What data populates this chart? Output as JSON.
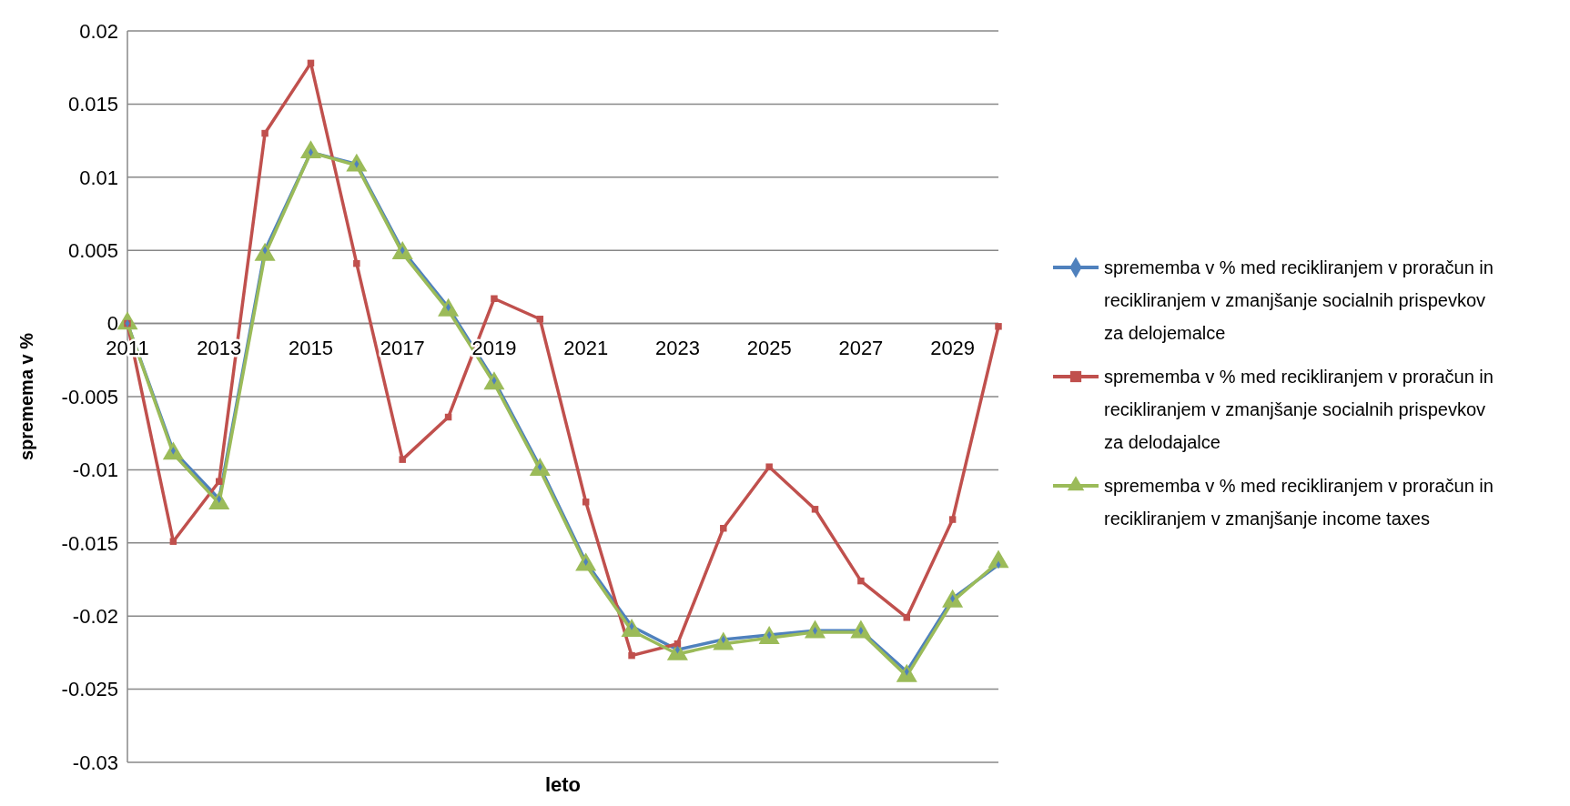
{
  "chart_data": {
    "type": "line",
    "xlabel": "leto",
    "ylabel": "spremema v %",
    "categories": [
      "2011",
      null,
      "2013",
      null,
      "2015",
      null,
      "2017",
      null,
      "2019",
      null,
      "2021",
      null,
      "2023",
      null,
      "2025",
      null,
      "2027",
      null,
      "2029",
      null
    ],
    "ylim": [
      -0.03,
      0.02
    ],
    "yticks": [
      -0.03,
      -0.025,
      -0.02,
      -0.015,
      -0.01,
      -0.005,
      0,
      0.005,
      0.01,
      0.015,
      0.02
    ],
    "grid": "y",
    "legend": "right",
    "series": [
      {
        "name": "sprememba v % med recikliranjem v proračun in recikliranjem v zmanjšanje socialnih prispevkov za delojemalce",
        "color": "#4f81bd",
        "marker": "diamond",
        "values": [
          0,
          -0.0087,
          -0.012,
          0.005,
          0.0117,
          0.0109,
          0.005,
          0.0011,
          -0.0039,
          -0.0098,
          -0.0163,
          -0.0207,
          -0.0223,
          -0.0216,
          -0.0213,
          -0.021,
          -0.021,
          -0.0238,
          -0.0188,
          -0.0165
        ]
      },
      {
        "name": "sprememba v % med recikliranjem v proračun in recikliranjem v zmanjšanje socialnih prispevkov za delodajalce",
        "color": "#c0504d",
        "marker": "square",
        "values": [
          0,
          -0.0149,
          -0.0108,
          0.013,
          0.0178,
          0.0041,
          -0.0093,
          -0.0064,
          0.0017,
          0.0003,
          -0.0122,
          -0.0227,
          -0.0219,
          -0.014,
          -0.0098,
          -0.0127,
          -0.0176,
          -0.0201,
          -0.0134,
          -0.0002
        ]
      },
      {
        "name": "sprememba v % med recikliranjem v proračun in recikliranjem v zmanjšanje income taxes",
        "color": "#9bbb59",
        "marker": "triangle",
        "values": [
          0,
          -0.0089,
          -0.0123,
          0.0047,
          0.0117,
          0.0108,
          0.0048,
          0.0009,
          -0.0041,
          -0.01,
          -0.0165,
          -0.021,
          -0.0226,
          -0.0219,
          -0.0215,
          -0.0211,
          -0.0211,
          -0.0241,
          -0.019,
          -0.0163
        ]
      }
    ]
  }
}
